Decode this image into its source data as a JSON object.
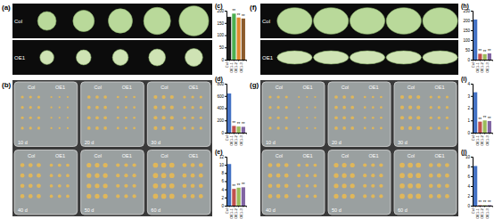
{
  "chart_data": [
    {
      "type": "bar",
      "title": "(c)",
      "categories": [
        "Col",
        "OE1-1",
        "OE1-2",
        "OE1-3"
      ],
      "values": [
        175,
        188,
        172,
        168
      ],
      "colors": [
        "#1a1a1a",
        "#4caf50",
        "#e08a2e",
        "#8b5a2b"
      ],
      "ylim": [
        0,
        200
      ],
      "yticks": [
        0,
        50,
        100,
        150,
        200
      ],
      "significance": [
        null,
        "**",
        "**",
        "**"
      ]
    },
    {
      "type": "bar",
      "title": "(d)",
      "categories": [
        "Col",
        "OE1-1",
        "OE1-2",
        "OE1-3"
      ],
      "values": [
        640,
        110,
        100,
        95
      ],
      "colors": [
        "#4472c4",
        "#c0504d",
        "#9bbb59",
        "#8064a2"
      ],
      "ylim": [
        0,
        800
      ],
      "yticks": [
        0,
        200,
        400,
        600,
        800
      ],
      "significance": [
        null,
        "**",
        "**",
        "**"
      ]
    },
    {
      "type": "bar",
      "title": "(e)",
      "categories": [
        "Col",
        "OE1-1",
        "OE1-2",
        "OE1-3"
      ],
      "values": [
        10.2,
        4.1,
        4.4,
        4.5
      ],
      "colors": [
        "#4472c4",
        "#c0504d",
        "#9bbb59",
        "#8064a2"
      ],
      "ylim": [
        0,
        12
      ],
      "yticks": [
        0,
        2,
        4,
        6,
        8,
        10,
        12
      ],
      "significance": [
        null,
        "**",
        "**",
        "**"
      ]
    },
    {
      "type": "bar",
      "title": "(h)",
      "categories": [
        "Col",
        "OE1-1",
        "OE1-2",
        "OE1-3"
      ],
      "values": [
        205,
        30,
        28,
        32
      ],
      "colors": [
        "#4472c4",
        "#c0504d",
        "#9bbb59",
        "#8064a2"
      ],
      "ylim": [
        0,
        250
      ],
      "yticks": [
        0,
        50,
        100,
        150,
        200,
        250
      ],
      "significance": [
        null,
        "**",
        "**",
        "**"
      ]
    },
    {
      "type": "bar",
      "title": "(i)",
      "categories": [
        "Col",
        "OE1-1",
        "OE1-2",
        "OE1-3"
      ],
      "values": [
        3.3,
        0.9,
        1.0,
        0.95
      ],
      "colors": [
        "#4472c4",
        "#c0504d",
        "#9bbb59",
        "#8064a2"
      ],
      "ylim": [
        0,
        4
      ],
      "yticks": [
        0,
        1,
        2,
        3,
        4
      ],
      "significance": [
        null,
        "**",
        "**",
        "**"
      ]
    },
    {
      "type": "bar",
      "title": "(j)",
      "categories": [
        "Col",
        "OE1-1",
        "OE1-2",
        "OE1-3"
      ],
      "values": [
        8.1,
        0.1,
        0.1,
        0.1
      ],
      "colors": [
        "#4472c4",
        "#c0504d",
        "#9bbb59",
        "#8064a2"
      ],
      "ylim": [
        0,
        10
      ],
      "yticks": [
        0,
        2,
        4,
        6,
        8,
        10
      ],
      "significance": [
        null,
        "**",
        "**",
        "**"
      ]
    }
  ],
  "photo_panels": [
    {
      "label": "(a)",
      "rows": [
        "Col",
        "OE1"
      ]
    },
    {
      "label": "(f)",
      "rows": [
        "Col",
        "OE1"
      ]
    }
  ],
  "plate_panels": [
    {
      "label": "(b)",
      "groups": [
        "Col",
        "OE1"
      ],
      "days": [
        "10 d",
        "20 d",
        "30 d",
        "40 d",
        "50 d",
        "60 d"
      ]
    },
    {
      "label": "(g)",
      "groups": [
        "Col",
        "OE1"
      ],
      "days": [
        "10 d",
        "20 d",
        "30 d",
        "40 d",
        "50 d",
        "60 d"
      ]
    }
  ]
}
